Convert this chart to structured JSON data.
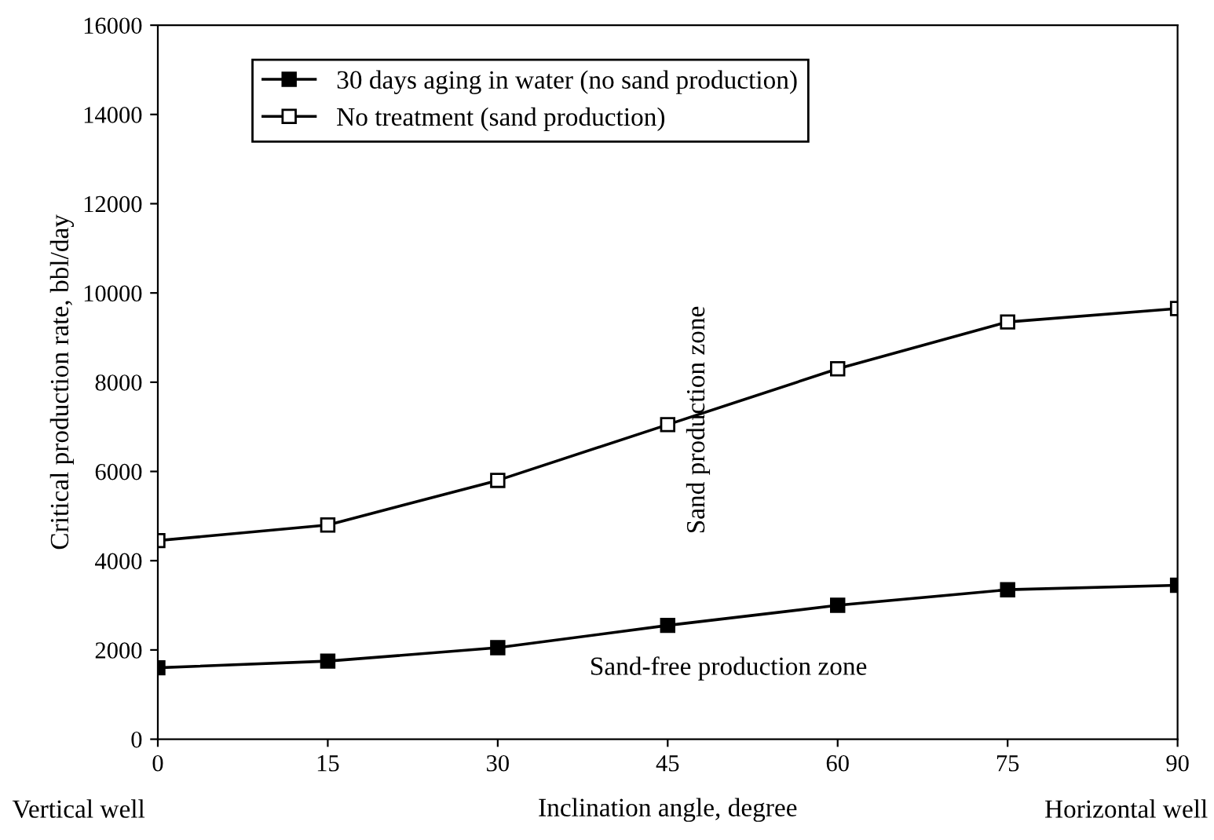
{
  "chart_data": {
    "type": "line",
    "x": [
      0,
      15,
      30,
      45,
      60,
      75,
      90
    ],
    "xlim": [
      0,
      90
    ],
    "xticks": [
      0,
      15,
      30,
      45,
      60,
      75,
      90
    ],
    "ylim": [
      0,
      16000
    ],
    "yticks": [
      0,
      2000,
      4000,
      6000,
      8000,
      10000,
      12000,
      14000,
      16000
    ],
    "xlabel": "Inclination angle, degree",
    "ylabel": "Critical production rate, bbl/day",
    "series": [
      {
        "name": "30 days aging in water (no sand production)",
        "color": "#000000",
        "values": [
          1600,
          1750,
          2050,
          2550,
          3000,
          3350,
          3450
        ]
      },
      {
        "name": "No treatment (sand production)",
        "color": "#000000",
        "values": [
          4450,
          4800,
          5800,
          7050,
          8300,
          9350,
          9650
        ]
      }
    ],
    "marker": "square",
    "line_style": "solid",
    "grid": false,
    "legend": "top left",
    "annotations": [
      "Sand production zone",
      "Sand-free production zone",
      "Vertical well",
      "Horizontal well"
    ]
  }
}
